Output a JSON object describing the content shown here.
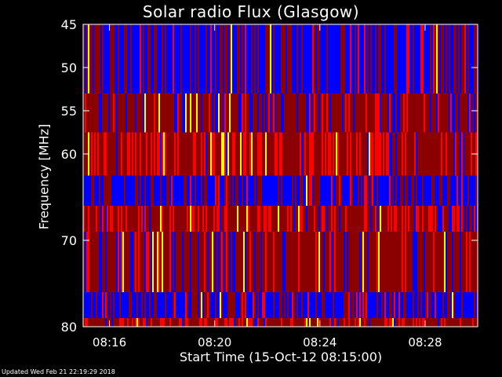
{
  "chart_data": {
    "type": "heatmap",
    "title": "Solar radio Flux (Glasgow)",
    "xlabel": "Start Time (15-Oct-12 08:15:00)",
    "ylabel": "Frequency [MHz]",
    "x_ticks": [
      {
        "label": "08:16",
        "minutes": 1
      },
      {
        "label": "08:20",
        "minutes": 5
      },
      {
        "label": "08:24",
        "minutes": 9
      },
      {
        "label": "08:28",
        "minutes": 13
      }
    ],
    "xlim_minutes": [
      0,
      15
    ],
    "y_ticks": [
      45,
      50,
      55,
      60,
      70,
      80
    ],
    "ylim": [
      45,
      80
    ],
    "bands": [
      {
        "f_low": 45.0,
        "f_high": 53.0,
        "mean_intensity": "low"
      },
      {
        "f_low": 53.0,
        "f_high": 57.5,
        "mean_intensity": "medium"
      },
      {
        "f_low": 57.5,
        "f_high": 62.5,
        "mean_intensity": "high"
      },
      {
        "f_low": 62.5,
        "f_high": 66.0,
        "mean_intensity": "low"
      },
      {
        "f_low": 66.0,
        "f_high": 69.0,
        "mean_intensity": "high"
      },
      {
        "f_low": 69.0,
        "f_high": 76.0,
        "mean_intensity": "medium"
      },
      {
        "f_low": 76.0,
        "f_high": 79.0,
        "mean_intensity": "low"
      },
      {
        "f_low": 79.0,
        "f_high": 80.0,
        "mean_intensity": "high"
      }
    ],
    "colormap": [
      "#0000ff",
      "#8b0000",
      "#ff0000",
      "#ffff00"
    ],
    "grid": false
  },
  "footer": {
    "updated": "Updated Wed Feb 21 22:19:29 2018"
  }
}
